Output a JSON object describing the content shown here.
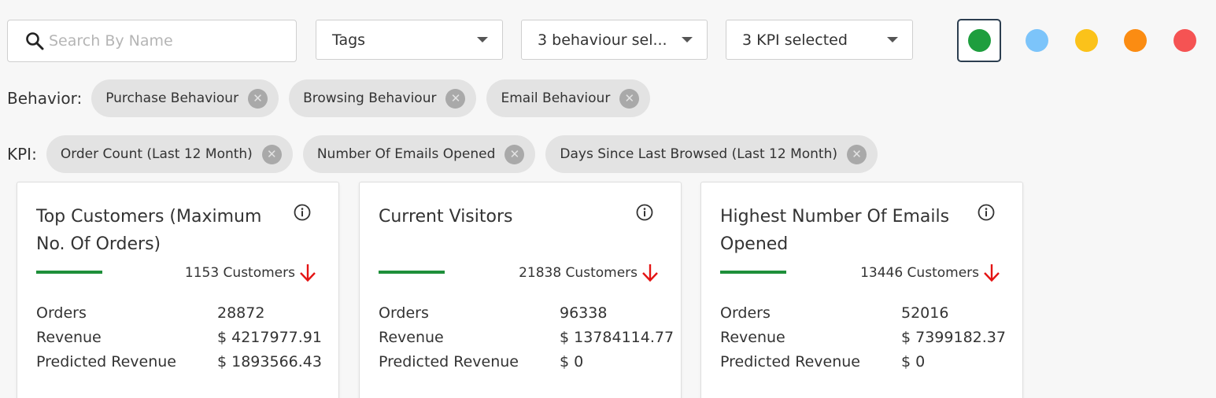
{
  "search": {
    "placeholder": "Search By Name",
    "value": ""
  },
  "filters": {
    "tags_label": "Tags",
    "behaviour_label": "3 behaviour sel...",
    "kpi_label": "3 KPI selected"
  },
  "colors": {
    "selected": "#1e9e3e",
    "options": [
      "#7cc4fa",
      "#fbc21a",
      "#fb8c12",
      "#f55353"
    ]
  },
  "behavior": {
    "label": "Behavior:",
    "chips": [
      "Purchase Behaviour",
      "Browsing Behaviour",
      "Email Behaviour"
    ]
  },
  "kpi": {
    "label": "KPI:",
    "chips": [
      "Order Count (Last 12 Month)",
      "Number Of Emails Opened",
      "Days Since Last Browsed (Last 12 Month)"
    ]
  },
  "cards": [
    {
      "title": "Top Customers (Maximum No. Of Orders)",
      "customers": "1153 Customers",
      "trend": "down",
      "metrics": [
        {
          "label": "Orders",
          "value": "28872"
        },
        {
          "label": "Revenue",
          "value": "$ 4217977.91"
        },
        {
          "label": "Predicted Revenue",
          "value": "$ 1893566.43"
        }
      ]
    },
    {
      "title": "Current Visitors",
      "customers": "21838 Customers",
      "trend": "down",
      "metrics": [
        {
          "label": "Orders",
          "value": "96338"
        },
        {
          "label": "Revenue",
          "value": "$ 13784114.77"
        },
        {
          "label": "Predicted Revenue",
          "value": "$ 0"
        }
      ]
    },
    {
      "title": "Highest Number Of Emails Opened",
      "customers": "13446 Customers",
      "trend": "down",
      "metrics": [
        {
          "label": "Orders",
          "value": "52016"
        },
        {
          "label": "Revenue",
          "value": "$ 7399182.37"
        },
        {
          "label": "Predicted Revenue",
          "value": "$ 0"
        }
      ]
    }
  ]
}
